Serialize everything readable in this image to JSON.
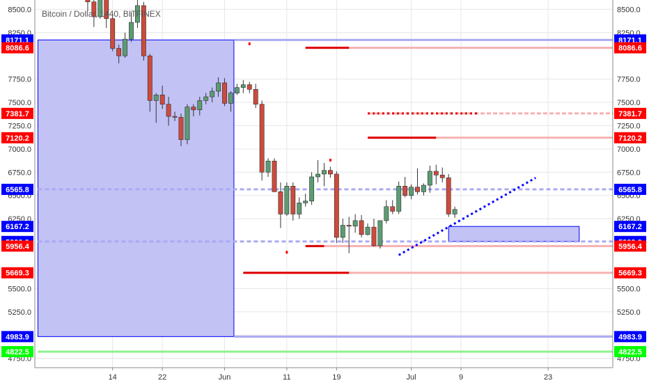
{
  "chart_data": {
    "type": "candlestick",
    "title": "Bitcoin / Dollar, 1440, BITFINEX",
    "y_axis": {
      "range": [
        4650,
        8600
      ],
      "ticks": [
        8500.0,
        8250.0,
        7750.0,
        7500.0,
        7250.0,
        7000.0,
        6750.0,
        6500.0,
        6250.0,
        5500.0,
        5250.0,
        5000.0,
        4750.0
      ]
    },
    "x_axis": {
      "ticks": [
        {
          "label": "14",
          "index": 12
        },
        {
          "label": "22",
          "index": 20
        },
        {
          "label": "Jun",
          "index": 30
        },
        {
          "label": "11",
          "index": 40
        },
        {
          "label": "19",
          "index": 48
        },
        {
          "label": "Jul",
          "index": 60
        },
        {
          "label": "9",
          "index": 68
        },
        {
          "label": "23",
          "index": 82
        }
      ]
    },
    "candles": [
      {
        "o": 8650,
        "h": 8700,
        "l": 8480,
        "c": 8580
      },
      {
        "o": 8580,
        "h": 8620,
        "l": 8310,
        "c": 8420
      },
      {
        "o": 8420,
        "h": 8660,
        "l": 8400,
        "c": 8620
      },
      {
        "o": 8620,
        "h": 8650,
        "l": 8300,
        "c": 8400
      },
      {
        "o": 8400,
        "h": 8450,
        "l": 8050,
        "c": 8080
      },
      {
        "o": 8080,
        "h": 8120,
        "l": 7920,
        "c": 8000
      },
      {
        "o": 8000,
        "h": 8250,
        "l": 7980,
        "c": 8180
      },
      {
        "o": 8180,
        "h": 8470,
        "l": 8150,
        "c": 8360
      },
      {
        "o": 8360,
        "h": 8650,
        "l": 8300,
        "c": 8540
      },
      {
        "o": 8540,
        "h": 8580,
        "l": 7950,
        "c": 8000
      },
      {
        "o": 8000,
        "h": 8020,
        "l": 7400,
        "c": 7520
      },
      {
        "o": 7520,
        "h": 7600,
        "l": 7280,
        "c": 7580
      },
      {
        "o": 7580,
        "h": 7680,
        "l": 7430,
        "c": 7480
      },
      {
        "o": 7480,
        "h": 7560,
        "l": 7250,
        "c": 7350
      },
      {
        "o": 7350,
        "h": 7400,
        "l": 7300,
        "c": 7340
      },
      {
        "o": 7340,
        "h": 7380,
        "l": 7030,
        "c": 7100
      },
      {
        "o": 7100,
        "h": 7480,
        "l": 7050,
        "c": 7450
      },
      {
        "o": 7450,
        "h": 7480,
        "l": 7350,
        "c": 7420
      },
      {
        "o": 7420,
        "h": 7560,
        "l": 7360,
        "c": 7520
      },
      {
        "o": 7520,
        "h": 7600,
        "l": 7480,
        "c": 7560
      },
      {
        "o": 7560,
        "h": 7660,
        "l": 7500,
        "c": 7620
      },
      {
        "o": 7620,
        "h": 7770,
        "l": 7560,
        "c": 7710
      },
      {
        "o": 7710,
        "h": 7760,
        "l": 7460,
        "c": 7490
      },
      {
        "o": 7490,
        "h": 7620,
        "l": 7400,
        "c": 7600
      },
      {
        "o": 7600,
        "h": 7700,
        "l": 7580,
        "c": 7660
      },
      {
        "o": 7660,
        "h": 7740,
        "l": 7600,
        "c": 7690
      },
      {
        "o": 7690,
        "h": 7720,
        "l": 7600,
        "c": 7640
      },
      {
        "o": 7640,
        "h": 7700,
        "l": 7440,
        "c": 7480
      },
      {
        "o": 7480,
        "h": 7520,
        "l": 6660,
        "c": 6750
      },
      {
        "o": 6750,
        "h": 6900,
        "l": 6700,
        "c": 6870
      },
      {
        "o": 6870,
        "h": 6900,
        "l": 6540,
        "c": 6540
      },
      {
        "o": 6540,
        "h": 6640,
        "l": 6150,
        "c": 6300
      },
      {
        "o": 6300,
        "h": 6640,
        "l": 6280,
        "c": 6600
      },
      {
        "o": 6600,
        "h": 6640,
        "l": 6230,
        "c": 6300
      },
      {
        "o": 6300,
        "h": 6480,
        "l": 6250,
        "c": 6420
      },
      {
        "o": 6420,
        "h": 6520,
        "l": 6380,
        "c": 6440
      },
      {
        "o": 6440,
        "h": 6750,
        "l": 6400,
        "c": 6700
      },
      {
        "o": 6700,
        "h": 6880,
        "l": 6640,
        "c": 6730
      },
      {
        "o": 6730,
        "h": 6850,
        "l": 6600,
        "c": 6770
      },
      {
        "o": 6770,
        "h": 6810,
        "l": 6690,
        "c": 6730
      },
      {
        "o": 6730,
        "h": 6760,
        "l": 5990,
        "c": 6050
      },
      {
        "o": 6050,
        "h": 6250,
        "l": 5990,
        "c": 6180
      },
      {
        "o": 6180,
        "h": 6270,
        "l": 5880,
        "c": 6170
      },
      {
        "o": 6170,
        "h": 6300,
        "l": 6100,
        "c": 6230
      },
      {
        "o": 6230,
        "h": 6290,
        "l": 6050,
        "c": 6080
      },
      {
        "o": 6080,
        "h": 6200,
        "l": 6070,
        "c": 6160
      },
      {
        "o": 6160,
        "h": 6250,
        "l": 5950,
        "c": 5960
      },
      {
        "o": 5960,
        "h": 6230,
        "l": 5930,
        "c": 6230
      },
      {
        "o": 6230,
        "h": 6450,
        "l": 6200,
        "c": 6380
      },
      {
        "o": 6380,
        "h": 6450,
        "l": 6300,
        "c": 6330
      },
      {
        "o": 6330,
        "h": 6650,
        "l": 6300,
        "c": 6600
      },
      {
        "o": 6600,
        "h": 6700,
        "l": 6480,
        "c": 6500
      },
      {
        "o": 6500,
        "h": 6620,
        "l": 6460,
        "c": 6590
      },
      {
        "o": 6590,
        "h": 6790,
        "l": 6510,
        "c": 6540
      },
      {
        "o": 6540,
        "h": 6630,
        "l": 6500,
        "c": 6610
      },
      {
        "o": 6610,
        "h": 6820,
        "l": 6530,
        "c": 6760
      },
      {
        "o": 6760,
        "h": 6830,
        "l": 6620,
        "c": 6720
      },
      {
        "o": 6720,
        "h": 6800,
        "l": 6640,
        "c": 6690
      },
      {
        "o": 6690,
        "h": 6730,
        "l": 6270,
        "c": 6300
      },
      {
        "o": 6300,
        "h": 6380,
        "l": 6260,
        "c": 6350
      }
    ],
    "candle_index_offset": 8,
    "price_tags": [
      {
        "label": "8171.1",
        "value": 8171.1,
        "color": "#0000ff"
      },
      {
        "label": "8086.6",
        "value": 8086.6,
        "color": "#ff0000"
      },
      {
        "label": "7381.7",
        "value": 7381.7,
        "color": "#ff0000"
      },
      {
        "label": "7120.2",
        "value": 7120.2,
        "color": "#ff0000"
      },
      {
        "label": "6565.8",
        "value": 6565.8,
        "color": "#0000ff"
      },
      {
        "label": "6167.2",
        "value": 6167.2,
        "color": "#0000ff"
      },
      {
        "label": "6005.9",
        "value": 6005.9,
        "color": "#0000ff"
      },
      {
        "label": "5999.9",
        "value": 5999.9,
        "color": "#0000ff"
      },
      {
        "label": "5956.4",
        "value": 5956.4,
        "color": "#ff0000"
      },
      {
        "label": "5669.3",
        "value": 5669.3,
        "color": "#ff0000"
      },
      {
        "label": "4983.9",
        "value": 4983.9,
        "color": "#0000ff"
      },
      {
        "label": "4822.5",
        "value": 4822.5,
        "color": "#00ff00"
      }
    ],
    "zones": [
      {
        "from_index": 0,
        "to_index": 31.5,
        "from_price": 8171.1,
        "to_price": 4983.9,
        "fill": "#c2c2f5",
        "stroke": "#0000ff"
      },
      {
        "from_index": 66,
        "to_index": 87,
        "from_price": 6167.2,
        "to_price": 6005.9,
        "fill": "#c2c2f5",
        "stroke": "#0000ff"
      }
    ],
    "levels": [
      {
        "value": 8171.1,
        "from_index": 31.5,
        "color": "#aaaaf2",
        "dash": "none"
      },
      {
        "value": 8086.6,
        "from_index": 43,
        "color": "#f5b1b1",
        "dash": "none",
        "bold_from_index": 43,
        "bold_to_index": 50,
        "bold_color": "#e00000"
      },
      {
        "value": 7381.7,
        "from_index": 53,
        "color": "#f5b1b1",
        "dash": "6,3",
        "bold_from_index": 53,
        "bold_to_index": 71,
        "bold_color": "#e00000",
        "bold_dash": "3,4"
      },
      {
        "value": 7120.2,
        "from_index": 53,
        "color": "#f5b1b1",
        "dash": "none",
        "bold_from_index": 53,
        "bold_to_index": 64,
        "bold_color": "#e00000"
      },
      {
        "value": 6565.8,
        "from_index": 0,
        "color": "#aaaaf2",
        "dash": "6,4"
      },
      {
        "value": 6005.9,
        "from_index": 0,
        "color": "#aaaaf2",
        "dash": "6,4"
      },
      {
        "value": 5956.4,
        "from_index": 43,
        "color": "#f5b1b1",
        "dash": "none",
        "bold_from_index": 43,
        "bold_to_index": 46,
        "bold_color": "#e00000"
      },
      {
        "value": 5669.3,
        "from_index": 33,
        "color": "#f5b1b1",
        "dash": "none",
        "bold_from_index": 33,
        "bold_to_index": 50,
        "bold_color": "#e00000"
      },
      {
        "value": 4983.9,
        "from_index": 31.5,
        "color": "#aaaaf2",
        "dash": "none"
      },
      {
        "value": 4822.5,
        "from_index": 0,
        "color": "#8ef28e",
        "dash": "none"
      }
    ],
    "trendline": {
      "from_index": 58,
      "from_price": 5860,
      "to_index": 80,
      "to_price": 6690,
      "color": "#0000ff",
      "dash": "3,4"
    },
    "markers": [
      {
        "index": 34,
        "price": 8130,
        "color": "#ff0000"
      },
      {
        "index": 40,
        "price": 5890,
        "color": "#ff0000"
      },
      {
        "index": 47,
        "price": 6880,
        "color": "#ff0000"
      }
    ],
    "colors": {
      "up": "#5c9c73",
      "down": "#cc4b3d",
      "wick": "#333333",
      "grid": "#e6e6e6"
    }
  }
}
